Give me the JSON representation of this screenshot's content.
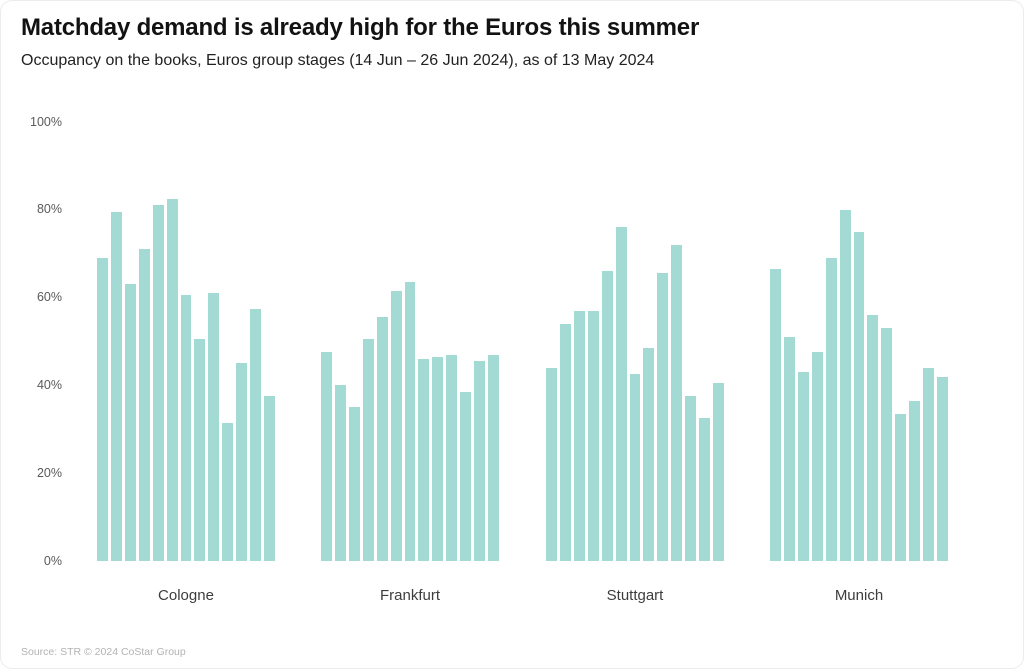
{
  "header": {
    "title": "Matchday demand is already high for the Euros this summer",
    "subtitle": "Occupancy on the books, Euros group stages (14 Jun – 26 Jun 2024), as of 13 May 2024"
  },
  "footer": {
    "source": "Source: STR © 2024 CoStar Group"
  },
  "colors": {
    "bar": "#a4dad4",
    "title_text": "#121212",
    "axis_label": "#5a5a5a",
    "category_label": "#3d3d3d",
    "source_text": "#b3b3b3",
    "background": "#ffffff"
  },
  "chart_data": {
    "type": "bar",
    "title": "Matchday demand is already high for the Euros this summer",
    "subtitle": "Occupancy on the books, Euros group stages (14 Jun – 26 Jun 2024), as of 13 May 2024",
    "xlabel": "",
    "ylabel": "",
    "unit": "%",
    "ylim": [
      0,
      100
    ],
    "y_ticks": [
      0,
      20,
      40,
      60,
      80,
      100
    ],
    "y_tick_labels": [
      "0%",
      "20%",
      "40%",
      "60%",
      "80%",
      "100%"
    ],
    "grid": false,
    "legend": false,
    "bars_per_group": 13,
    "categories": [
      "Cologne",
      "Frankfurt",
      "Stuttgart",
      "Munich"
    ],
    "series": [
      {
        "name": "Cologne",
        "values": [
          69,
          79.5,
          63,
          71,
          81,
          82.5,
          60.5,
          50.5,
          61,
          31.5,
          45,
          57.5,
          37.5
        ]
      },
      {
        "name": "Frankfurt",
        "values": [
          47.5,
          40,
          35,
          50.5,
          55.5,
          61.5,
          63.5,
          46,
          46.5,
          47,
          38.5,
          45.5,
          47
        ]
      },
      {
        "name": "Stuttgart",
        "values": [
          44,
          54,
          57,
          57,
          66,
          76,
          42.5,
          48.5,
          65.5,
          72,
          37.5,
          32.5,
          40.5
        ]
      },
      {
        "name": "Munich",
        "values": [
          66.5,
          51,
          43,
          47.5,
          69,
          80,
          75,
          56,
          53,
          33.5,
          36.5,
          44,
          42
        ]
      }
    ]
  }
}
